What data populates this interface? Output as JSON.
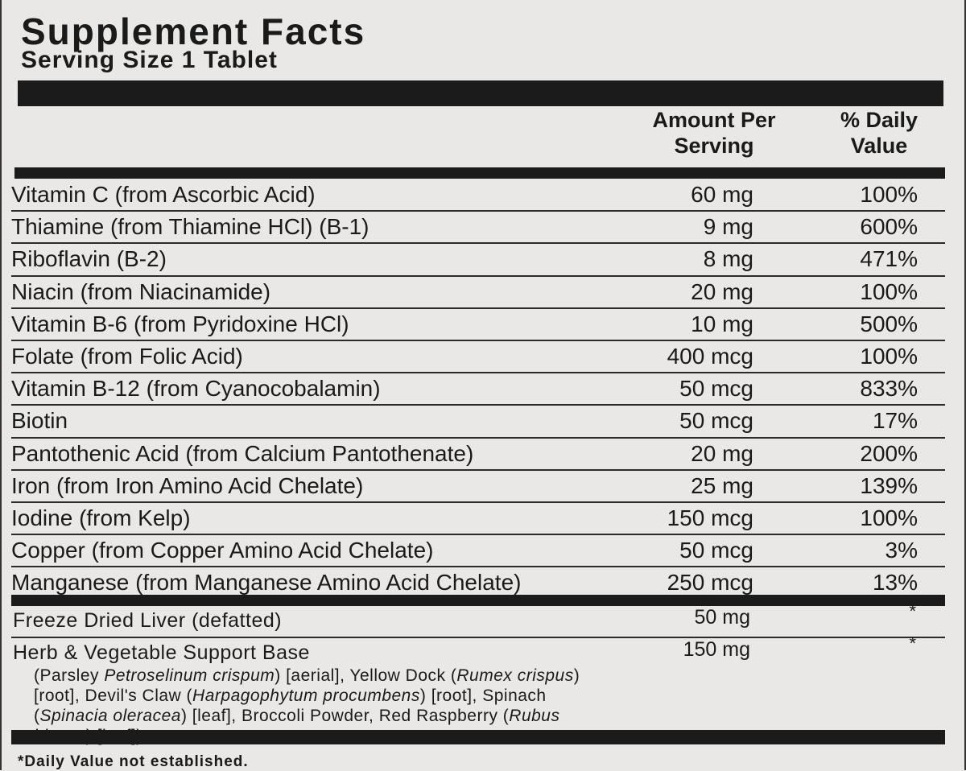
{
  "title": "Supplement Facts",
  "serving_size": "Serving Size 1 Tablet",
  "columns": [
    "Amount Per Serving",
    "% Daily Value"
  ],
  "nutrients": [
    {
      "name": "Vitamin C (from Ascorbic Acid)",
      "amount": "60 mg",
      "daily_value": "100%"
    },
    {
      "name": "Thiamine (from Thiamine HCl) (B-1)",
      "amount": "9 mg",
      "daily_value": "600%"
    },
    {
      "name": "Riboflavin (B-2)",
      "amount": "8 mg",
      "daily_value": "471%"
    },
    {
      "name": "Niacin (from Niacinamide)",
      "amount": "20 mg",
      "daily_value": "100%"
    },
    {
      "name": "Vitamin B-6 (from Pyridoxine HCl)",
      "amount": "10 mg",
      "daily_value": "500%"
    },
    {
      "name": "Folate (from Folic Acid)",
      "amount": "400 mcg",
      "daily_value": "100%"
    },
    {
      "name": "Vitamin B-12 (from Cyanocobalamin)",
      "amount": "50 mcg",
      "daily_value": "833%"
    },
    {
      "name": "Biotin",
      "amount": "50 mcg",
      "daily_value": "17%"
    },
    {
      "name": "Pantothenic Acid (from Calcium Pantothenate)",
      "amount": "20 mg",
      "daily_value": "200%"
    },
    {
      "name": "Iron (from Iron Amino Acid Chelate)",
      "amount": "25 mg",
      "daily_value": "139%"
    },
    {
      "name": "Iodine (from Kelp)",
      "amount": "150 mcg",
      "daily_value": "100%"
    },
    {
      "name": "Copper (from Copper Amino Acid Chelate)",
      "amount": "50 mcg",
      "daily_value": "3%"
    },
    {
      "name": "Manganese (from Manganese Amino Acid Chelate)",
      "amount": "250 mcg",
      "daily_value": "13%"
    }
  ],
  "other_ingredients": [
    {
      "name": "Freeze Dried Liver (defatted)",
      "amount": "50 mg",
      "daily_value": "*"
    },
    {
      "name": "Herb & Vegetable Support Base",
      "amount": "150 mg",
      "daily_value": "*",
      "description": [
        {
          "text": "(Parsley ",
          "italic": false
        },
        {
          "text": "Petroselinum crispum",
          "italic": true
        },
        {
          "text": ") [aerial], Yellow Dock (",
          "italic": false
        },
        {
          "text": "Rumex crispus",
          "italic": true
        },
        {
          "text": ") [root], Devil's Claw (",
          "italic": false
        },
        {
          "text": "Harpagophytum procumbens",
          "italic": true
        },
        {
          "text": ") [root], Spinach (",
          "italic": false
        },
        {
          "text": "Spinacia oleracea",
          "italic": true
        },
        {
          "text": ") [leaf], Broccoli Powder, Red Raspberry (",
          "italic": false
        },
        {
          "text": "Rubus idaeus",
          "italic": true
        },
        {
          "text": ") [leaf])",
          "italic": false
        }
      ]
    }
  ],
  "footnote": "*Daily Value not established."
}
